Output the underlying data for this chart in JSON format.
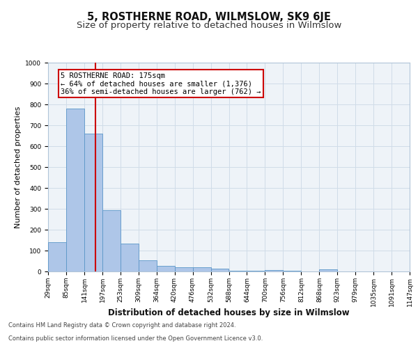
{
  "title": "5, ROSTHERNE ROAD, WILMSLOW, SK9 6JE",
  "subtitle": "Size of property relative to detached houses in Wilmslow",
  "xlabel": "Distribution of detached houses by size in Wilmslow",
  "ylabel": "Number of detached properties",
  "bar_left_edges": [
    29,
    85,
    141,
    197,
    253,
    309,
    364,
    420,
    476,
    532,
    588,
    644,
    700,
    756,
    812,
    868,
    923,
    979,
    1035,
    1091
  ],
  "bar_heights": [
    140,
    780,
    660,
    295,
    132,
    52,
    28,
    20,
    20,
    13,
    5,
    2,
    8,
    5,
    0,
    10,
    0,
    0,
    0,
    0
  ],
  "bin_width": 56,
  "bar_color": "#aec6e8",
  "bar_edge_color": "#5a96c8",
  "property_size": 175,
  "vline_color": "#cc0000",
  "annotation_line1": "5 ROSTHERNE ROAD: 175sqm",
  "annotation_line2": "← 64% of detached houses are smaller (1,376)",
  "annotation_line3": "36% of semi-detached houses are larger (762) →",
  "annotation_box_color": "#ffffff",
  "annotation_box_edge": "#cc0000",
  "tick_labels": [
    "29sqm",
    "85sqm",
    "141sqm",
    "197sqm",
    "253sqm",
    "309sqm",
    "364sqm",
    "420sqm",
    "476sqm",
    "532sqm",
    "588sqm",
    "644sqm",
    "700sqm",
    "756sqm",
    "812sqm",
    "868sqm",
    "923sqm",
    "979sqm",
    "1035sqm",
    "1091sqm",
    "1147sqm"
  ],
  "ylim": [
    0,
    1000
  ],
  "yticks": [
    0,
    100,
    200,
    300,
    400,
    500,
    600,
    700,
    800,
    900,
    1000
  ],
  "grid_color": "#d0dce8",
  "background_color": "#eef3f8",
  "footer_line1": "Contains HM Land Registry data © Crown copyright and database right 2024.",
  "footer_line2": "Contains public sector information licensed under the Open Government Licence v3.0.",
  "title_fontsize": 10.5,
  "subtitle_fontsize": 9.5,
  "xlabel_fontsize": 8.5,
  "ylabel_fontsize": 8,
  "tick_fontsize": 6.5,
  "annotation_fontsize": 7.5,
  "footer_fontsize": 6
}
